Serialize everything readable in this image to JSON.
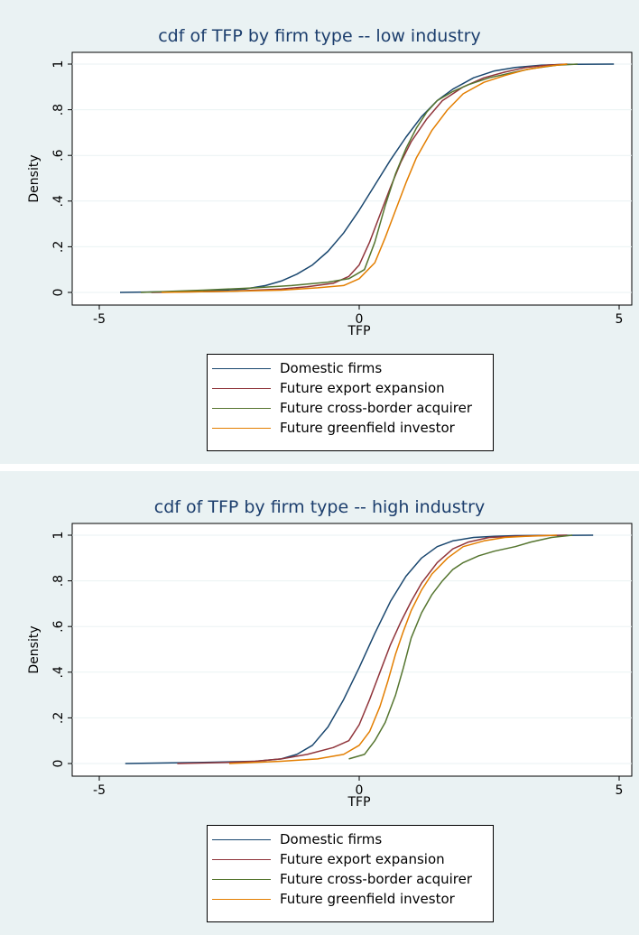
{
  "chart_data": [
    {
      "type": "line",
      "title": "cdf of TFP by firm type -- low industry",
      "xlabel": "TFP",
      "ylabel": "Density",
      "xlim": [
        -5,
        5
      ],
      "ylim": [
        0,
        1
      ],
      "xticks": [
        "-5",
        "0",
        "5"
      ],
      "yticks": [
        "0",
        ".2",
        ".4",
        ".6",
        ".8",
        "1"
      ],
      "grid": true,
      "legend_position": "bottom",
      "series": [
        {
          "name": "Domestic firms",
          "color": "#1a476f",
          "x": [
            -4.6,
            -3.0,
            -2.2,
            -1.8,
            -1.5,
            -1.2,
            -0.9,
            -0.6,
            -0.3,
            0.0,
            0.3,
            0.6,
            0.9,
            1.2,
            1.5,
            1.8,
            2.2,
            2.6,
            3.0,
            3.5,
            4.0,
            4.9
          ],
          "y": [
            0.0,
            0.005,
            0.015,
            0.03,
            0.05,
            0.08,
            0.12,
            0.18,
            0.26,
            0.36,
            0.47,
            0.58,
            0.68,
            0.77,
            0.84,
            0.89,
            0.94,
            0.97,
            0.985,
            0.995,
            0.999,
            1.0
          ]
        },
        {
          "name": "Future export expansion",
          "color": "#90353b",
          "x": [
            -4.0,
            -2.5,
            -1.5,
            -1.0,
            -0.5,
            -0.2,
            0.0,
            0.2,
            0.4,
            0.6,
            0.8,
            1.0,
            1.3,
            1.6,
            2.0,
            2.4,
            2.8,
            3.2,
            3.6,
            4.0
          ],
          "y": [
            0.0,
            0.005,
            0.015,
            0.025,
            0.04,
            0.07,
            0.12,
            0.22,
            0.34,
            0.46,
            0.57,
            0.66,
            0.76,
            0.84,
            0.9,
            0.94,
            0.965,
            0.985,
            0.995,
            1.0
          ]
        },
        {
          "name": "Future cross-border acquirer",
          "color": "#55752f",
          "x": [
            -4.2,
            -3.0,
            -2.0,
            -1.3,
            -0.6,
            -0.2,
            0.1,
            0.3,
            0.5,
            0.7,
            0.9,
            1.1,
            1.3,
            1.5,
            1.8,
            2.1,
            2.5,
            2.9,
            3.3,
            3.8,
            4.2
          ],
          "y": [
            0.0,
            0.01,
            0.02,
            0.03,
            0.045,
            0.06,
            0.1,
            0.22,
            0.38,
            0.52,
            0.63,
            0.72,
            0.79,
            0.84,
            0.88,
            0.91,
            0.94,
            0.96,
            0.98,
            0.995,
            1.0
          ]
        },
        {
          "name": "Future greenfield investor",
          "color": "#e37e00",
          "x": [
            -3.8,
            -2.5,
            -1.5,
            -0.8,
            -0.3,
            0.0,
            0.3,
            0.5,
            0.7,
            0.9,
            1.1,
            1.4,
            1.7,
            2.0,
            2.4,
            2.8,
            3.2,
            3.6,
            4.0
          ],
          "y": [
            0.0,
            0.005,
            0.01,
            0.02,
            0.03,
            0.06,
            0.13,
            0.24,
            0.36,
            0.48,
            0.59,
            0.71,
            0.8,
            0.87,
            0.92,
            0.95,
            0.975,
            0.99,
            1.0
          ]
        }
      ]
    },
    {
      "type": "line",
      "title": "cdf of TFP by firm type -- high industry",
      "xlabel": "TFP",
      "ylabel": "Density",
      "xlim": [
        -5,
        5
      ],
      "ylim": [
        0,
        1
      ],
      "xticks": [
        "-5",
        "0",
        "5"
      ],
      "yticks": [
        "0",
        ".2",
        ".4",
        ".6",
        ".8",
        "1"
      ],
      "grid": true,
      "legend_position": "bottom",
      "series": [
        {
          "name": "Domestic firms",
          "color": "#1a476f",
          "x": [
            -4.5,
            -3.0,
            -2.0,
            -1.5,
            -1.2,
            -0.9,
            -0.6,
            -0.3,
            0.0,
            0.3,
            0.6,
            0.9,
            1.2,
            1.5,
            1.8,
            2.2,
            2.6,
            3.0,
            3.5,
            4.5
          ],
          "y": [
            0.0,
            0.005,
            0.01,
            0.02,
            0.04,
            0.08,
            0.16,
            0.28,
            0.42,
            0.57,
            0.71,
            0.82,
            0.9,
            0.95,
            0.975,
            0.99,
            0.995,
            0.998,
            0.999,
            1.0
          ]
        },
        {
          "name": "Future export expansion",
          "color": "#90353b",
          "x": [
            -3.5,
            -2.5,
            -2.0,
            -1.5,
            -1.0,
            -0.5,
            -0.2,
            0.0,
            0.2,
            0.4,
            0.6,
            0.8,
            1.0,
            1.2,
            1.5,
            1.8,
            2.1,
            2.5,
            3.0,
            3.5,
            4.0
          ],
          "y": [
            0.0,
            0.005,
            0.01,
            0.02,
            0.04,
            0.07,
            0.1,
            0.17,
            0.28,
            0.4,
            0.52,
            0.62,
            0.71,
            0.79,
            0.88,
            0.94,
            0.97,
            0.99,
            0.995,
            0.998,
            1.0
          ]
        },
        {
          "name": "Future cross-border acquirer",
          "color": "#55752f",
          "x": [
            -0.2,
            0.1,
            0.3,
            0.5,
            0.7,
            0.85,
            1.0,
            1.2,
            1.4,
            1.6,
            1.8,
            2.0,
            2.3,
            2.6,
            3.0,
            3.3,
            3.7,
            4.1
          ],
          "y": [
            0.02,
            0.04,
            0.1,
            0.18,
            0.3,
            0.42,
            0.55,
            0.66,
            0.74,
            0.8,
            0.85,
            0.88,
            0.91,
            0.93,
            0.95,
            0.97,
            0.99,
            1.0
          ]
        },
        {
          "name": "Future greenfield investor",
          "color": "#e37e00",
          "x": [
            -2.5,
            -1.5,
            -0.8,
            -0.3,
            0.0,
            0.2,
            0.4,
            0.55,
            0.7,
            0.85,
            1.0,
            1.2,
            1.4,
            1.7,
            2.0,
            2.4,
            2.8,
            3.2,
            3.8
          ],
          "y": [
            0.0,
            0.01,
            0.02,
            0.04,
            0.08,
            0.14,
            0.25,
            0.36,
            0.48,
            0.58,
            0.67,
            0.76,
            0.83,
            0.9,
            0.95,
            0.975,
            0.99,
            0.995,
            1.0
          ]
        }
      ]
    }
  ]
}
